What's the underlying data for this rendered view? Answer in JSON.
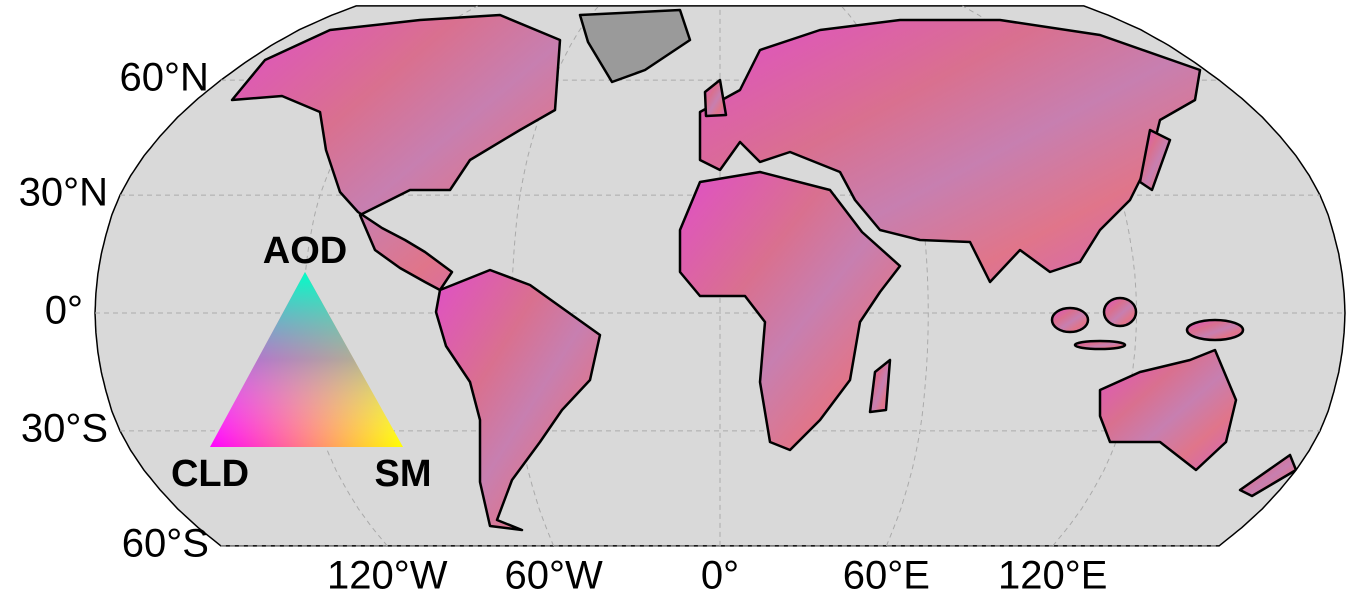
{
  "map": {
    "lat_ticks": [
      {
        "value": 60,
        "label": "60°N"
      },
      {
        "value": 30,
        "label": "30°N"
      },
      {
        "value": 0,
        "label": "0°"
      },
      {
        "value": -30,
        "label": "30°S"
      },
      {
        "value": -60,
        "label": "60°S"
      }
    ],
    "lon_ticks": [
      {
        "value": -120,
        "label": "120°W"
      },
      {
        "value": -60,
        "label": "60°W"
      },
      {
        "value": 0,
        "label": "0°"
      },
      {
        "value": 60,
        "label": "60°E"
      },
      {
        "value": 120,
        "label": "120°E"
      }
    ],
    "legend": {
      "top": "AOD",
      "left": "CLD",
      "right": "SM"
    }
  }
}
